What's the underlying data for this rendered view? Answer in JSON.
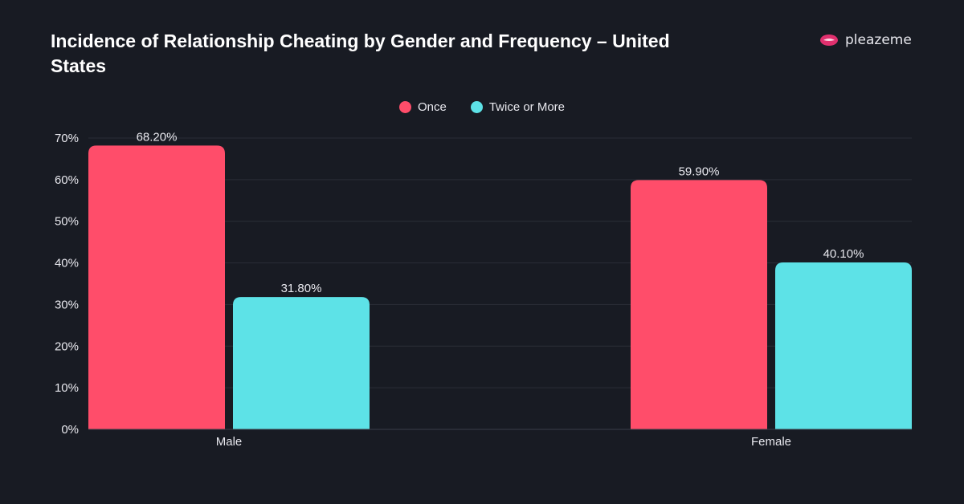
{
  "chart_data": {
    "type": "bar",
    "title": "Incidence of Relationship Cheating by Gender and Frequency – United States",
    "categories": [
      "Male",
      "Female"
    ],
    "series": [
      {
        "name": "Once",
        "values": [
          68.2,
          59.9
        ],
        "color": "#ff4d6a"
      },
      {
        "name": "Twice or More",
        "values": [
          31.8,
          40.1
        ],
        "color": "#5de2e7"
      }
    ],
    "data_labels": [
      [
        "68.20%",
        "59.90%"
      ],
      [
        "31.80%",
        "40.10%"
      ]
    ],
    "ylim": [
      0,
      70
    ],
    "yticks": [
      "0%",
      "10%",
      "20%",
      "30%",
      "40%",
      "50%",
      "60%",
      "70%"
    ],
    "grid": true,
    "legend": "top-center"
  },
  "brand": {
    "name": "pleazeme",
    "logo_icon": "lips-icon"
  }
}
